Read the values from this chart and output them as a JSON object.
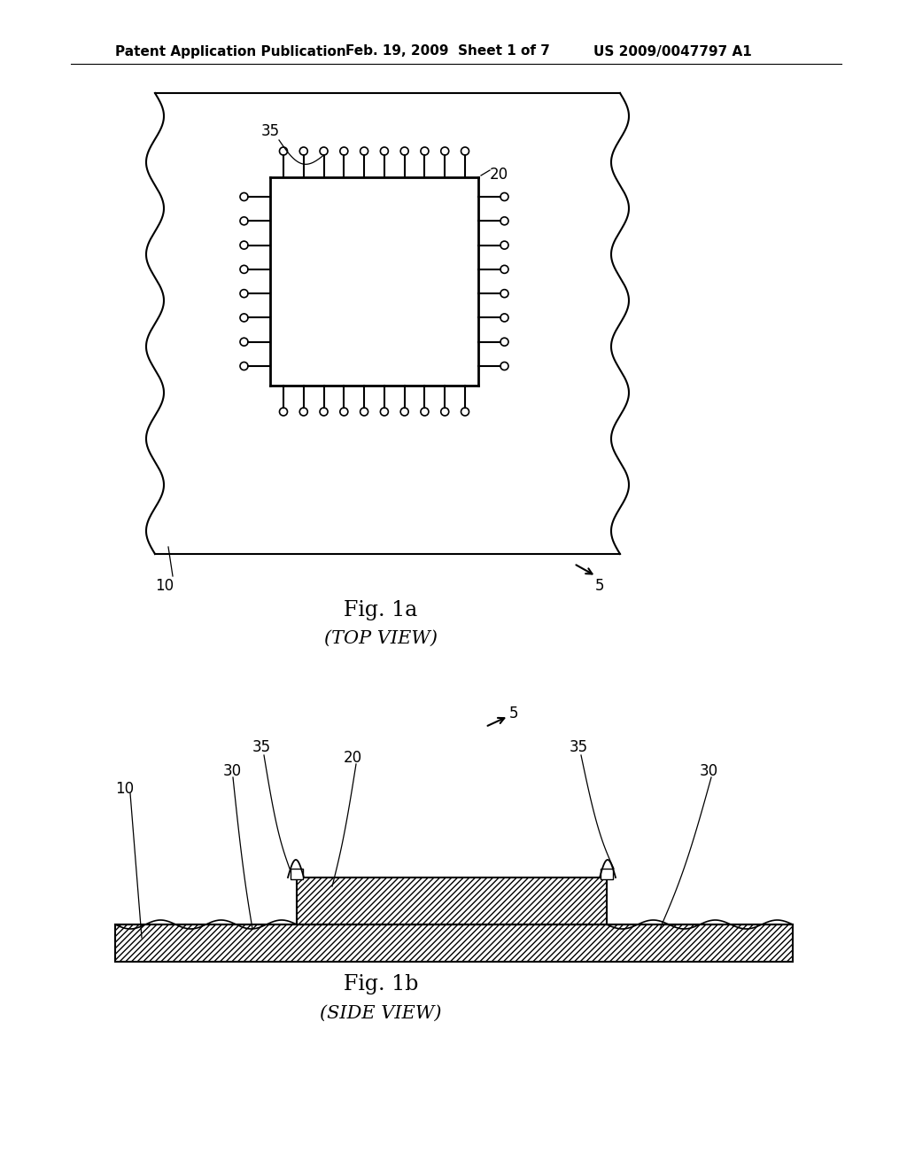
{
  "bg_color": "#ffffff",
  "header_left": "Patent Application Publication",
  "header_mid": "Feb. 19, 2009  Sheet 1 of 7",
  "header_right": "US 2009/0047797 A1",
  "fig1a_title": "Fig. 1a",
  "fig1a_subtitle": "(TOP VIEW)",
  "fig1b_title": "Fig. 1b",
  "fig1b_subtitle": "(SIDE VIEW)"
}
